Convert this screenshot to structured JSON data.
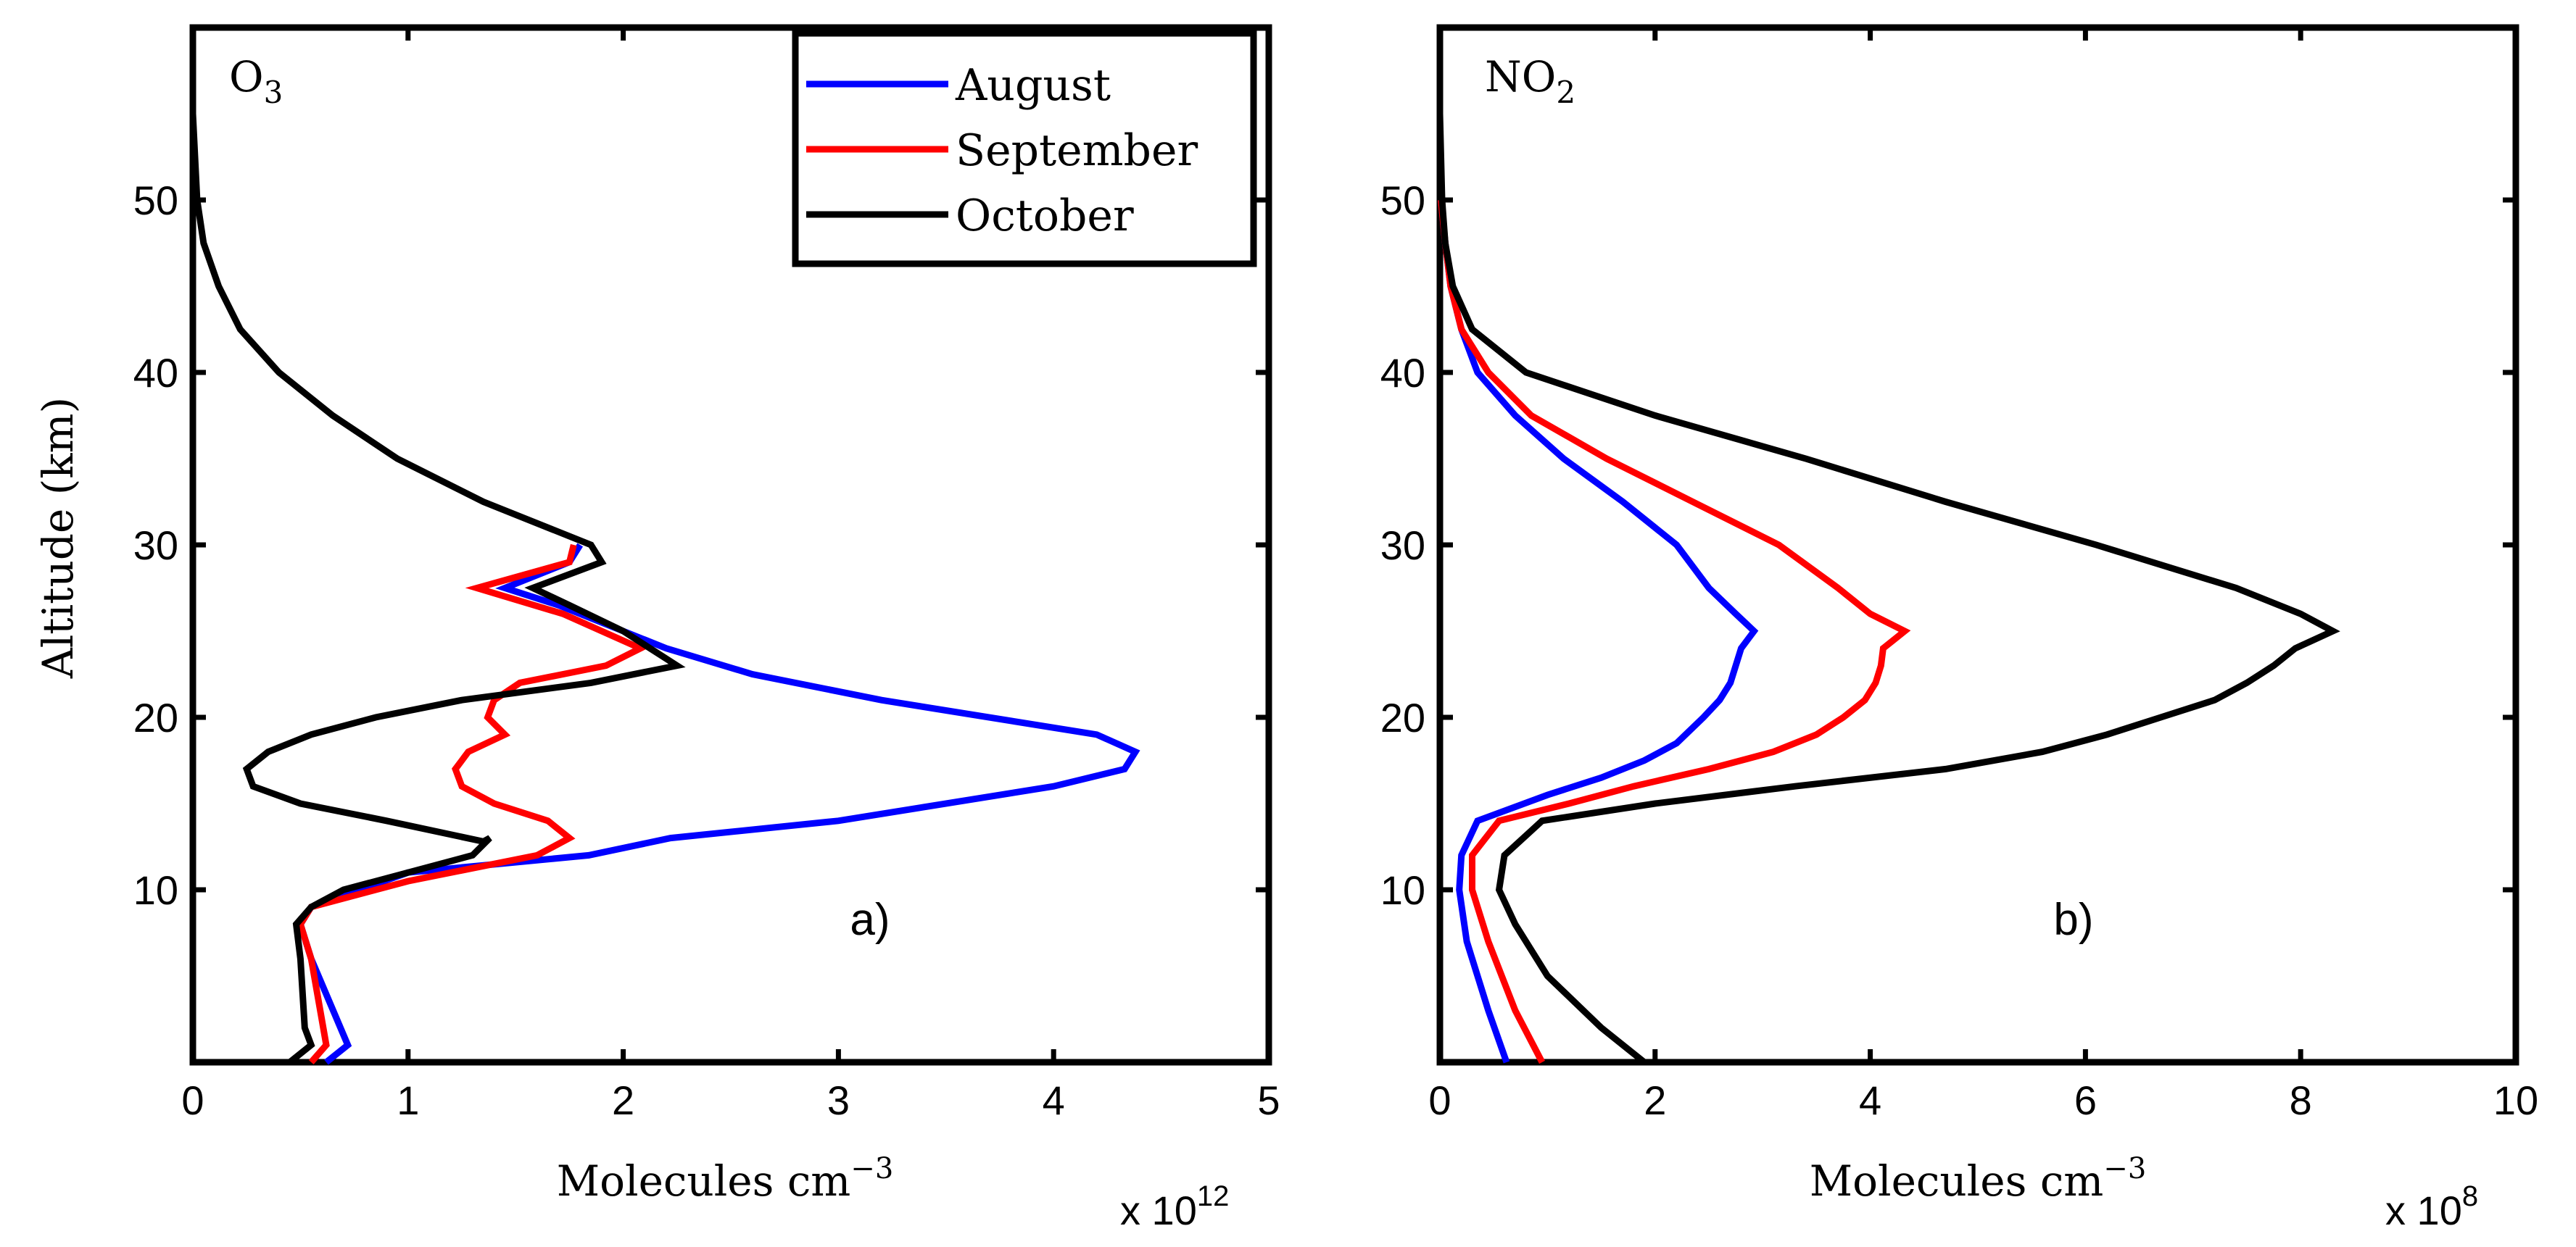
{
  "figure": {
    "ylabel": "Altitude (km)"
  },
  "legend": {
    "entries": [
      {
        "label": "August",
        "color": "#0000ff"
      },
      {
        "label": "September",
        "color": "#ff0000"
      },
      {
        "label": "October",
        "color": "#000000"
      }
    ]
  },
  "chart_data": [
    {
      "type": "line",
      "panel_label": "a)",
      "species": "O",
      "species_sub": "3",
      "xlabel": "Molecules cm",
      "xlabel_exp": "−3",
      "x_multiplier": "x 10",
      "x_multiplier_exp": "12",
      "xlim": [
        0,
        5
      ],
      "ylim": [
        0,
        60
      ],
      "xticks": [
        "0",
        "1",
        "2",
        "3",
        "4",
        "5"
      ],
      "yticks": [
        "10",
        "20",
        "30",
        "40",
        "50"
      ],
      "legend_placement": "top-right",
      "grid": false,
      "series": [
        {
          "name": "August",
          "color": "#0000ff",
          "points": [
            [
              0.62,
              0
            ],
            [
              0.72,
              1
            ],
            [
              0.55,
              6
            ],
            [
              0.5,
              8
            ],
            [
              0.55,
              9
            ],
            [
              1.0,
              11
            ],
            [
              1.84,
              12
            ],
            [
              2.22,
              13
            ],
            [
              3.0,
              14
            ],
            [
              4.0,
              16
            ],
            [
              4.33,
              17
            ],
            [
              4.38,
              18
            ],
            [
              4.2,
              19
            ],
            [
              3.2,
              21
            ],
            [
              2.6,
              22.5
            ],
            [
              2.2,
              24
            ],
            [
              2.0,
              25
            ],
            [
              1.7,
              26.5
            ],
            [
              1.45,
              27.5
            ],
            [
              1.75,
              29
            ],
            [
              1.8,
              30
            ]
          ]
        },
        {
          "name": "September",
          "color": "#ff0000",
          "points": [
            [
              0.55,
              0
            ],
            [
              0.62,
              1
            ],
            [
              0.55,
              6
            ],
            [
              0.5,
              8
            ],
            [
              0.55,
              9
            ],
            [
              1.0,
              10.5
            ],
            [
              1.6,
              12
            ],
            [
              1.75,
              13
            ],
            [
              1.65,
              14
            ],
            [
              1.4,
              15
            ],
            [
              1.25,
              16
            ],
            [
              1.22,
              17
            ],
            [
              1.28,
              18
            ],
            [
              1.45,
              19
            ],
            [
              1.37,
              20
            ],
            [
              1.4,
              21
            ],
            [
              1.52,
              22
            ],
            [
              1.92,
              23
            ],
            [
              2.08,
              24
            ],
            [
              1.72,
              26
            ],
            [
              1.32,
              27.5
            ],
            [
              1.75,
              29
            ],
            [
              1.77,
              30
            ]
          ]
        },
        {
          "name": "October",
          "color": "#000000",
          "points": [
            [
              0.45,
              0
            ],
            [
              0.55,
              1
            ],
            [
              0.52,
              2
            ],
            [
              0.5,
              6
            ],
            [
              0.48,
              8
            ],
            [
              0.55,
              9
            ],
            [
              0.7,
              10
            ],
            [
              1.3,
              12
            ],
            [
              1.38,
              13
            ],
            [
              1.35,
              12.8
            ],
            [
              0.9,
              14
            ],
            [
              0.5,
              15
            ],
            [
              0.28,
              16
            ],
            [
              0.25,
              17
            ],
            [
              0.35,
              18
            ],
            [
              0.55,
              19
            ],
            [
              0.85,
              20
            ],
            [
              1.25,
              21
            ],
            [
              1.85,
              22
            ],
            [
              2.25,
              23
            ],
            [
              2.0,
              25
            ],
            [
              1.75,
              26.5
            ],
            [
              1.58,
              27.5
            ],
            [
              1.9,
              29
            ],
            [
              1.85,
              30
            ],
            [
              1.35,
              32.5
            ],
            [
              0.95,
              35
            ],
            [
              0.65,
              37.5
            ],
            [
              0.4,
              40
            ],
            [
              0.22,
              42.5
            ],
            [
              0.12,
              45
            ],
            [
              0.05,
              47.5
            ],
            [
              0.02,
              50
            ],
            [
              0.0,
              55
            ],
            [
              0.0,
              59
            ]
          ]
        }
      ]
    },
    {
      "type": "line",
      "panel_label": "b)",
      "species": "NO",
      "species_sub": "2",
      "xlabel": "Molecules cm",
      "xlabel_exp": "−3",
      "x_multiplier": "x 10",
      "x_multiplier_exp": "8",
      "xlim": [
        0,
        10
      ],
      "ylim": [
        0,
        60
      ],
      "xticks": [
        "0",
        "2",
        "4",
        "6",
        "8",
        "10"
      ],
      "yticks": [
        "10",
        "20",
        "30",
        "40",
        "50"
      ],
      "grid": false,
      "series": [
        {
          "name": "August",
          "color": "#0000ff",
          "points": [
            [
              0.62,
              0
            ],
            [
              0.45,
              3
            ],
            [
              0.25,
              7
            ],
            [
              0.18,
              10
            ],
            [
              0.2,
              12
            ],
            [
              0.35,
              14
            ],
            [
              1.0,
              15.5
            ],
            [
              1.5,
              16.5
            ],
            [
              1.9,
              17.5
            ],
            [
              2.2,
              18.5
            ],
            [
              2.45,
              20
            ],
            [
              2.6,
              21
            ],
            [
              2.7,
              22
            ],
            [
              2.75,
              23
            ],
            [
              2.8,
              24
            ],
            [
              2.92,
              25
            ],
            [
              2.75,
              26
            ],
            [
              2.5,
              27.5
            ],
            [
              2.2,
              30
            ],
            [
              1.7,
              32.5
            ],
            [
              1.15,
              35
            ],
            [
              0.7,
              37.5
            ],
            [
              0.35,
              40
            ],
            [
              0.2,
              42.5
            ],
            [
              0.1,
              45
            ],
            [
              0.05,
              47.5
            ],
            [
              0.01,
              50
            ]
          ]
        },
        {
          "name": "September",
          "color": "#ff0000",
          "points": [
            [
              0.95,
              0
            ],
            [
              0.7,
              3
            ],
            [
              0.45,
              7
            ],
            [
              0.3,
              10
            ],
            [
              0.3,
              12
            ],
            [
              0.55,
              14
            ],
            [
              1.2,
              15
            ],
            [
              1.8,
              16
            ],
            [
              2.5,
              17
            ],
            [
              3.1,
              18
            ],
            [
              3.5,
              19
            ],
            [
              3.75,
              20
            ],
            [
              3.95,
              21
            ],
            [
              4.05,
              22
            ],
            [
              4.1,
              23
            ],
            [
              4.12,
              24
            ],
            [
              4.32,
              25
            ],
            [
              4.0,
              26
            ],
            [
              3.7,
              27.5
            ],
            [
              3.15,
              30
            ],
            [
              2.35,
              32.5
            ],
            [
              1.55,
              35
            ],
            [
              0.85,
              37.5
            ],
            [
              0.45,
              40
            ],
            [
              0.2,
              42.5
            ],
            [
              0.1,
              45
            ],
            [
              0.05,
              47.5
            ],
            [
              0.01,
              50
            ]
          ]
        },
        {
          "name": "October",
          "color": "#000000",
          "points": [
            [
              1.9,
              0
            ],
            [
              1.5,
              2
            ],
            [
              1.0,
              5
            ],
            [
              0.7,
              8
            ],
            [
              0.55,
              10
            ],
            [
              0.6,
              12
            ],
            [
              0.95,
              14
            ],
            [
              2.0,
              15
            ],
            [
              3.3,
              16
            ],
            [
              4.7,
              17
            ],
            [
              5.6,
              18
            ],
            [
              6.2,
              19
            ],
            [
              6.7,
              20
            ],
            [
              7.2,
              21
            ],
            [
              7.5,
              22
            ],
            [
              7.75,
              23
            ],
            [
              7.95,
              24
            ],
            [
              8.3,
              25
            ],
            [
              8.0,
              26
            ],
            [
              7.4,
              27.5
            ],
            [
              6.1,
              30
            ],
            [
              4.7,
              32.5
            ],
            [
              3.4,
              35
            ],
            [
              2.0,
              37.5
            ],
            [
              0.8,
              40
            ],
            [
              0.3,
              42.5
            ],
            [
              0.12,
              45
            ],
            [
              0.05,
              47.5
            ],
            [
              0.02,
              50
            ],
            [
              0.0,
              55
            ]
          ]
        }
      ]
    }
  ]
}
